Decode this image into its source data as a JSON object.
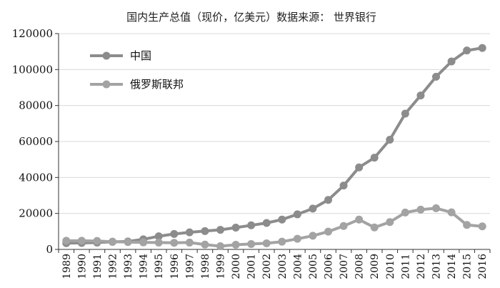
{
  "chart_data": {
    "type": "line",
    "title": "国内生产总值（现价，亿美元）数据来源： 世界银行",
    "xlabel": "",
    "ylabel": "",
    "categories": [
      "1989",
      "1990",
      "1991",
      "1992",
      "1993",
      "1994",
      "1995",
      "1996",
      "1997",
      "1998",
      "1999",
      "2000",
      "2001",
      "2002",
      "2003",
      "2004",
      "2005",
      "2006",
      "2007",
      "2008",
      "2009",
      "2010",
      "2011",
      "2012",
      "2013",
      "2014",
      "2015",
      "2016"
    ],
    "ylim": [
      0,
      120000
    ],
    "yticks": [
      "0",
      "20000",
      "40000",
      "60000",
      "80000",
      "100000",
      "120000"
    ],
    "legend_position": "top-left",
    "series": [
      {
        "name": "中国",
        "color": "#8c8c8c",
        "values": [
          3500,
          3600,
          3800,
          4200,
          4400,
          5600,
          7300,
          8600,
          9500,
          10200,
          10900,
          12100,
          13400,
          14700,
          16600,
          19500,
          22700,
          27500,
          35500,
          45600,
          51000,
          61000,
          75500,
          85600,
          96000,
          104500,
          110600,
          112000
        ]
      },
      {
        "name": "俄罗斯联邦",
        "color": "#a3a3a3",
        "values": [
          4800,
          4800,
          4700,
          4300,
          4100,
          3900,
          3800,
          3700,
          3800,
          2700,
          1800,
          2600,
          3000,
          3400,
          4300,
          5900,
          7600,
          9900,
          13000,
          16600,
          12200,
          15200,
          20500,
          22100,
          22900,
          20600,
          13600,
          12800
        ]
      }
    ]
  }
}
